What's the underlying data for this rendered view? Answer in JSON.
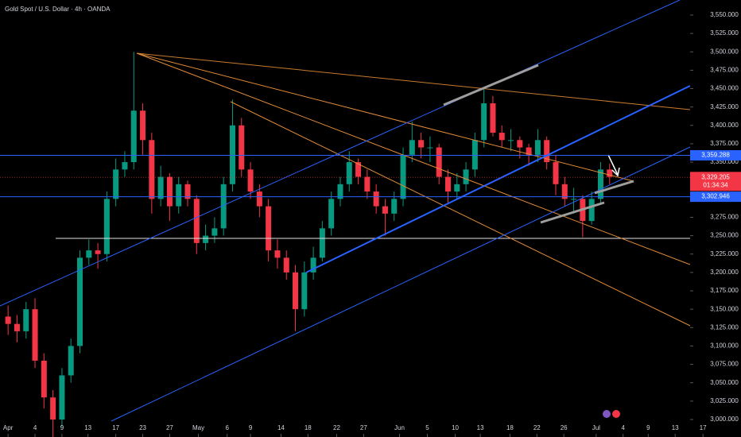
{
  "chart_data": {
    "type": "candlestick",
    "title": "Gold Spot / U.S. Dollar · 4h · OANDA",
    "up_color": "#089981",
    "down_color": "#f23645",
    "xlim": [
      -0.9,
      78.8
    ],
    "ylim": [
      2976.2,
      3570.5
    ],
    "xticks": [
      {
        "value": 0,
        "label": "Apr"
      },
      {
        "value": 3,
        "label": "4"
      },
      {
        "value": 6,
        "label": "9"
      },
      {
        "value": 8.9,
        "label": "13"
      },
      {
        "value": 12,
        "label": "17"
      },
      {
        "value": 15,
        "label": "23"
      },
      {
        "value": 18,
        "label": "27"
      },
      {
        "value": 21.2,
        "label": "May"
      },
      {
        "value": 24.4,
        "label": "6"
      },
      {
        "value": 27,
        "label": "9"
      },
      {
        "value": 30.4,
        "label": "14"
      },
      {
        "value": 33.4,
        "label": "18"
      },
      {
        "value": 36.6,
        "label": "22"
      },
      {
        "value": 39.6,
        "label": "27"
      },
      {
        "value": 43.6,
        "label": "Jun"
      },
      {
        "value": 46.7,
        "label": "5"
      },
      {
        "value": 49.8,
        "label": "10"
      },
      {
        "value": 52.6,
        "label": "13"
      },
      {
        "value": 55.9,
        "label": "18"
      },
      {
        "value": 58.9,
        "label": "22"
      },
      {
        "value": 61.9,
        "label": "26"
      },
      {
        "value": 65.5,
        "label": "Jul"
      },
      {
        "value": 68.5,
        "label": "4"
      },
      {
        "value": 71.3,
        "label": "9"
      },
      {
        "value": 74.3,
        "label": "13"
      },
      {
        "value": 77.4,
        "label": "17"
      }
    ],
    "yticks": [
      {
        "value": 3000,
        "label": "3,000.000"
      },
      {
        "value": 3025,
        "label": "3,025.000"
      },
      {
        "value": 3050,
        "label": "3,050.000"
      },
      {
        "value": 3075,
        "label": "3,075.000"
      },
      {
        "value": 3100,
        "label": "3,100.000"
      },
      {
        "value": 3125,
        "label": "3,125.000"
      },
      {
        "value": 3150,
        "label": "3,150.000"
      },
      {
        "value": 3175,
        "label": "3,175.000"
      },
      {
        "value": 3200,
        "label": "3,200.000"
      },
      {
        "value": 3225,
        "label": "3,225.000"
      },
      {
        "value": 3250,
        "label": "3,250.000"
      },
      {
        "value": 3275,
        "label": "3,275.000"
      },
      {
        "value": 3300,
        "label": "3,300.000"
      },
      {
        "value": 3325,
        "label": "3,325.000"
      },
      {
        "value": 3350,
        "label": "3,350.000"
      },
      {
        "value": 3375,
        "label": "3,375.000"
      },
      {
        "value": 3400,
        "label": "3,400.000"
      },
      {
        "value": 3425,
        "label": "3,425.000"
      },
      {
        "value": 3450,
        "label": "3,450.000"
      },
      {
        "value": 3475,
        "label": "3,475.000"
      },
      {
        "value": 3500,
        "label": "3,500.000"
      },
      {
        "value": 3525,
        "label": "3,525.000"
      },
      {
        "value": 3550,
        "label": "3,550.000"
      }
    ],
    "open": [
      3140,
      3130,
      3120,
      3150,
      3080,
      3030,
      3000,
      3060,
      3100,
      3220,
      3230,
      3225,
      3300,
      3340,
      3350,
      3420,
      3380,
      3300,
      3330,
      3290,
      3320,
      3300,
      3240,
      3250,
      3260,
      3320,
      3400,
      3340,
      3310,
      3290,
      3230,
      3220,
      3200,
      3150,
      3200,
      3220,
      3260,
      3300,
      3320,
      3350,
      3330,
      3310,
      3290,
      3280,
      3300,
      3360,
      3380,
      3370,
      3370,
      3330,
      3310,
      3320,
      3340,
      3380,
      3430,
      3390,
      3380,
      3380,
      3370,
      3360,
      3380,
      3350,
      3320,
      3300,
      3300,
      3270,
      3300,
      3340
    ],
    "high": [
      3155,
      3142,
      3160,
      3165,
      3090,
      3040,
      3070,
      3110,
      3230,
      3245,
      3240,
      3310,
      3355,
      3365,
      3500,
      3430,
      3390,
      3345,
      3335,
      3330,
      3325,
      3305,
      3265,
      3275,
      3330,
      3435,
      3410,
      3350,
      3320,
      3300,
      3245,
      3230,
      3210,
      3215,
      3235,
      3270,
      3310,
      3330,
      3365,
      3355,
      3340,
      3320,
      3300,
      3310,
      3370,
      3405,
      3390,
      3385,
      3375,
      3340,
      3335,
      3350,
      3390,
      3452,
      3440,
      3400,
      3395,
      3385,
      3375,
      3395,
      3385,
      3360,
      3330,
      3315,
      3305,
      3310,
      3350,
      3348
    ],
    "low": [
      3115,
      3105,
      3110,
      3070,
      3015,
      2975,
      2990,
      3050,
      3090,
      3210,
      3205,
      3215,
      3290,
      3330,
      3340,
      3360,
      3280,
      3290,
      3270,
      3280,
      3290,
      3225,
      3230,
      3240,
      3250,
      3310,
      3330,
      3300,
      3275,
      3215,
      3205,
      3190,
      3120,
      3140,
      3190,
      3215,
      3250,
      3290,
      3310,
      3320,
      3300,
      3280,
      3250,
      3270,
      3290,
      3350,
      3355,
      3350,
      3320,
      3295,
      3300,
      3310,
      3330,
      3370,
      3385,
      3370,
      3365,
      3355,
      3345,
      3350,
      3340,
      3305,
      3290,
      3280,
      3248,
      3265,
      3295,
      3320
    ],
    "close": [
      3130,
      3120,
      3150,
      3080,
      3030,
      3000,
      3060,
      3100,
      3220,
      3230,
      3225,
      3300,
      3340,
      3350,
      3420,
      3380,
      3300,
      3330,
      3290,
      3320,
      3300,
      3240,
      3250,
      3260,
      3320,
      3400,
      3340,
      3310,
      3290,
      3230,
      3220,
      3200,
      3150,
      3200,
      3220,
      3260,
      3300,
      3320,
      3350,
      3330,
      3310,
      3290,
      3280,
      3300,
      3360,
      3380,
      3370,
      3370,
      3330,
      3310,
      3320,
      3340,
      3380,
      3430,
      3390,
      3380,
      3380,
      3370,
      3360,
      3380,
      3350,
      3320,
      3300,
      3300,
      3270,
      3300,
      3340,
      3330
    ],
    "price_lines": [
      {
        "value": 3359.288,
        "label": "3,359.288",
        "color": "#2962ff"
      },
      {
        "value": 3302.946,
        "label": "3,302.946",
        "color": "#2962ff"
      }
    ],
    "last_price": {
      "value": 3329.205,
      "label": "3,329.205",
      "countdown": "01:34:34",
      "color": "#f23645"
    }
  }
}
